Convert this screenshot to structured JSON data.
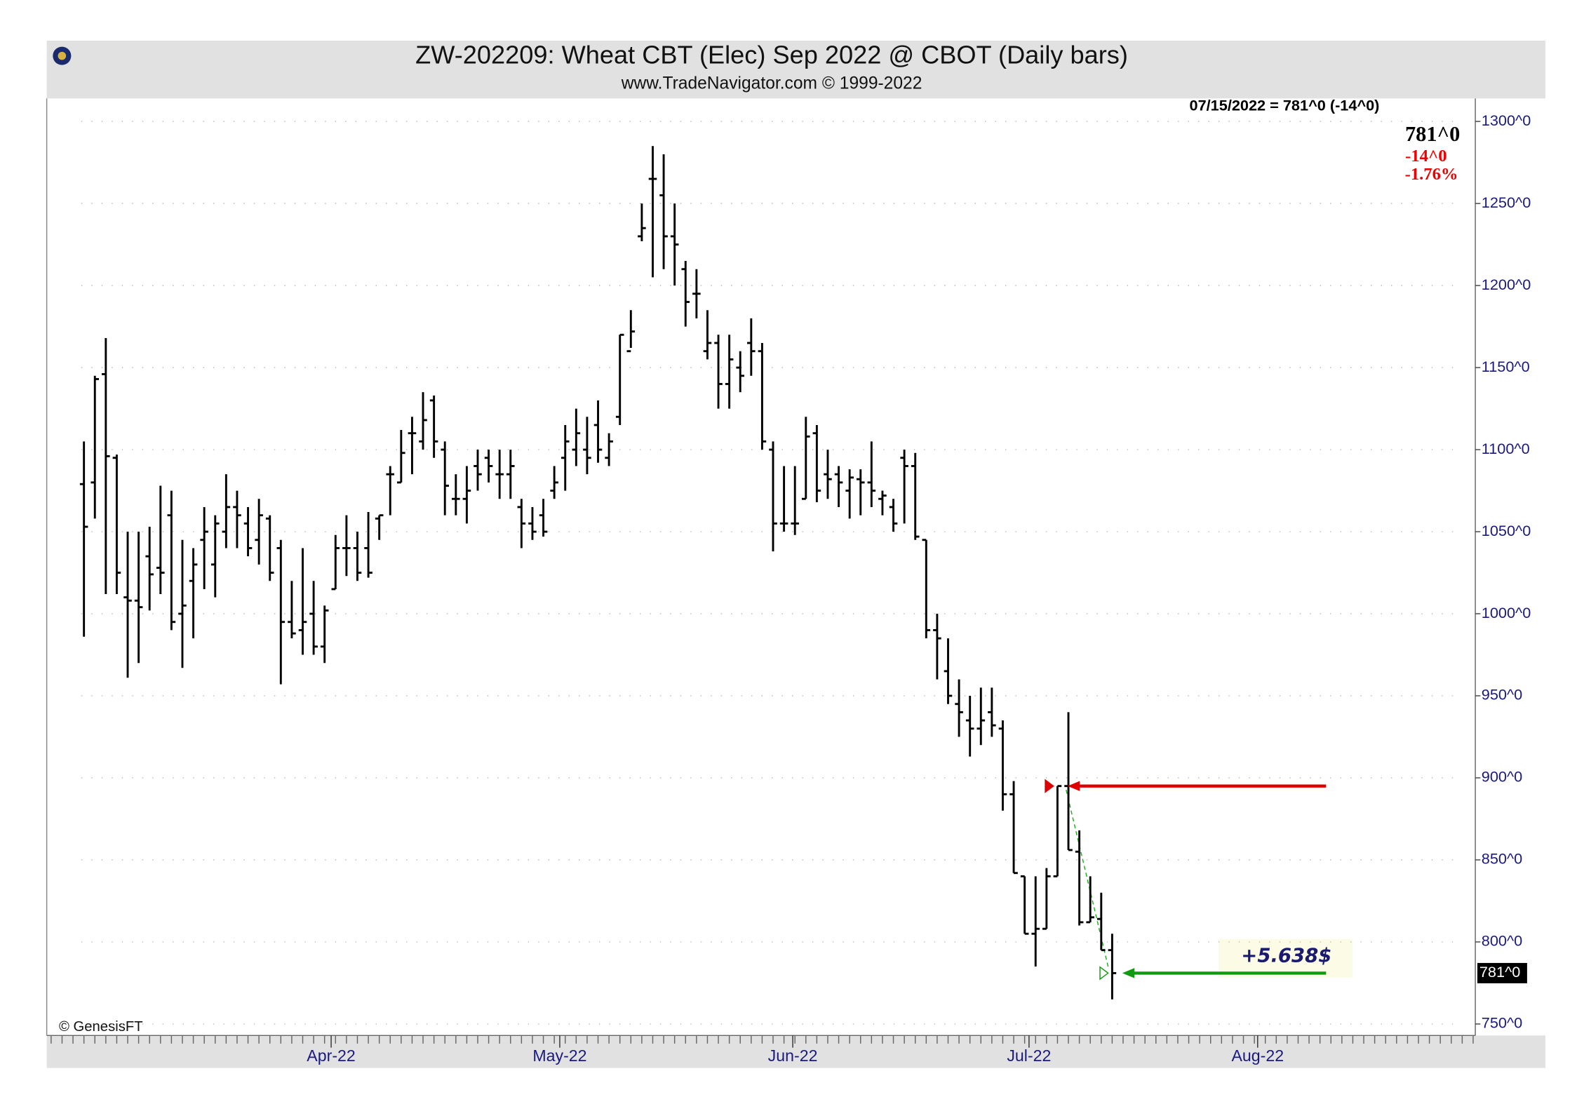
{
  "chart_data": {
    "type": "ohlc",
    "title": "ZW-202209:  Wheat CBT (Elec) Sep 2022 @ CBOT  (Daily bars)",
    "subtitle": "www.TradeNavigator.com © 1999-2022",
    "header_label": "07/15/2022 = 781^0 (-14^0)",
    "last_price": {
      "value": 781,
      "label": "781^0"
    },
    "change": {
      "value": -14,
      "label": "-14^0"
    },
    "change_pct": {
      "value": -1.76,
      "label": "-1.76%"
    },
    "price_box": {
      "value": 781,
      "label": "781^0"
    },
    "profit": {
      "value": 5.638,
      "label": "+5.638$"
    },
    "copyright": "© GenesisFT",
    "color": "#000000",
    "categories": [
      null,
      null,
      null,
      null,
      null,
      null,
      null,
      null,
      null,
      null,
      null,
      null,
      null,
      null,
      null,
      null,
      null,
      null,
      null,
      null,
      null,
      null,
      null,
      null,
      null,
      null,
      null,
      null,
      null,
      null,
      null,
      null,
      null,
      null,
      null,
      null,
      null,
      null,
      null,
      null,
      null,
      null,
      null,
      null,
      null,
      null,
      null,
      null,
      null,
      null,
      null,
      null,
      null,
      null,
      null,
      null,
      null,
      null,
      null,
      null,
      null,
      null,
      null,
      null,
      null,
      null,
      null,
      null,
      null,
      null,
      null,
      null,
      null,
      null,
      null,
      null,
      null,
      null,
      null,
      null,
      null,
      null,
      null,
      null,
      null,
      null,
      null,
      null,
      null,
      null,
      null,
      null,
      null,
      null,
      null
    ],
    "open": [
      1079,
      1080,
      1146,
      1095,
      1010,
      1008,
      1035,
      1028,
      1060,
      1000,
      1020,
      1045,
      1030,
      1050,
      1065,
      1055,
      1045,
      1058,
      1040,
      995,
      990,
      1000,
      980,
      1015,
      1040,
      1040,
      1040,
      1058,
      1085,
      1080,
      1110,
      1105,
      1130,
      1100,
      1070,
      1070,
      1090,
      1095,
      1085,
      1085,
      1065,
      1055,
      1060,
      1075,
      1095,
      1100,
      1100,
      1115,
      1095,
      1120,
      1160,
      1230,
      1265,
      1255,
      1230,
      1210,
      1195,
      1160,
      1165,
      1140,
      1150,
      1165,
      1160,
      1100,
      1055,
      1055,
      1070,
      1110,
      1085,
      1085,
      1075,
      1082,
      1080,
      1070,
      1065,
      1095,
      1090,
      1045,
      990,
      965,
      945,
      935,
      930,
      940,
      930,
      890,
      840,
      805,
      808,
      840,
      895,
      855,
      812,
      814,
      795
    ],
    "high": [
      1105,
      1145,
      1168,
      1097,
      1050,
      1050,
      1053,
      1078,
      1075,
      1045,
      1040,
      1065,
      1060,
      1085,
      1075,
      1065,
      1070,
      1060,
      1045,
      1020,
      1040,
      1020,
      1005,
      1048,
      1060,
      1050,
      1062,
      1060,
      1090,
      1112,
      1120,
      1135,
      1133,
      1105,
      1085,
      1090,
      1100,
      1100,
      1100,
      1100,
      1070,
      1065,
      1070,
      1090,
      1115,
      1125,
      1120,
      1130,
      1110,
      1170,
      1185,
      1250,
      1285,
      1280,
      1250,
      1215,
      1210,
      1185,
      1170,
      1170,
      1160,
      1180,
      1165,
      1105,
      1090,
      1090,
      1120,
      1115,
      1100,
      1090,
      1088,
      1088,
      1105,
      1075,
      1070,
      1100,
      1098,
      1045,
      1000,
      985,
      960,
      950,
      955,
      955,
      935,
      898,
      840,
      840,
      845,
      895,
      940,
      868,
      840,
      830,
      805
    ],
    "low": [
      986,
      1058,
      1012,
      1012,
      961,
      970,
      1002,
      1012,
      990,
      967,
      985,
      1015,
      1010,
      1040,
      1040,
      1035,
      1030,
      1020,
      957,
      985,
      975,
      975,
      970,
      1015,
      1023,
      1020,
      1022,
      1045,
      1060,
      1080,
      1085,
      1100,
      1095,
      1060,
      1060,
      1055,
      1075,
      1080,
      1070,
      1070,
      1040,
      1045,
      1047,
      1070,
      1075,
      1090,
      1085,
      1092,
      1090,
      1115,
      1162,
      1227,
      1205,
      1210,
      1200,
      1175,
      1180,
      1155,
      1125,
      1125,
      1135,
      1145,
      1100,
      1038,
      1050,
      1048,
      1070,
      1068,
      1070,
      1065,
      1058,
      1060,
      1065,
      1060,
      1050,
      1055,
      1045,
      985,
      960,
      945,
      925,
      913,
      920,
      925,
      880,
      842,
      805,
      785,
      808,
      840,
      856,
      810,
      812,
      795,
      765
    ],
    "close": [
      1053,
      1143,
      1096,
      1025,
      1008,
      1004,
      1024,
      1025,
      995,
      1005,
      1030,
      1050,
      1055,
      1065,
      1060,
      1040,
      1060,
      1025,
      995,
      988,
      995,
      980,
      1002,
      1040,
      1040,
      1025,
      1025,
      1060,
      1085,
      1098,
      1110,
      1118,
      1105,
      1078,
      1070,
      1075,
      1085,
      1090,
      1085,
      1090,
      1055,
      1050,
      1050,
      1080,
      1105,
      1110,
      1095,
      1100,
      1105,
      1170,
      1172,
      1235,
      1265,
      1230,
      1225,
      1190,
      1195,
      1165,
      1140,
      1155,
      1145,
      1160,
      1105,
      1055,
      1055,
      1055,
      1108,
      1075,
      1082,
      1080,
      1083,
      1080,
      1075,
      1072,
      1055,
      1090,
      1047,
      990,
      985,
      950,
      940,
      930,
      935,
      932,
      890,
      842,
      805,
      808,
      840,
      895,
      856,
      812,
      815,
      795,
      781
    ],
    "xlim": [
      -3.4,
      127.2
    ],
    "xticks": [
      {
        "value": 22.6,
        "label": "Apr-22"
      },
      {
        "value": 43.5,
        "label": "May-22"
      },
      {
        "value": 64.8,
        "label": "Jun-22"
      },
      {
        "value": 86.4,
        "label": "Jul-22"
      },
      {
        "value": 107.3,
        "label": "Aug-22"
      }
    ],
    "ylim": [
      743,
      1314
    ],
    "yticks": [
      {
        "value": 750,
        "label": "750^0"
      },
      {
        "value": 800,
        "label": "800^0"
      },
      {
        "value": 850,
        "label": "850^0"
      },
      {
        "value": 900,
        "label": "900^0"
      },
      {
        "value": 950,
        "label": "950^0"
      },
      {
        "value": 1000,
        "label": "1000^0"
      },
      {
        "value": 1050,
        "label": "1050^0"
      },
      {
        "value": 1100,
        "label": "1100^0"
      },
      {
        "value": 1150,
        "label": "1150^0"
      },
      {
        "value": 1200,
        "label": "1200^0"
      },
      {
        "value": 1250,
        "label": "1250^0"
      },
      {
        "value": 1300,
        "label": "1300^0"
      }
    ],
    "grid": true,
    "arrows": [
      {
        "color": "#dd0000",
        "value": 895,
        "index": 89
      },
      {
        "color": "#119911",
        "value": 781,
        "index": 94
      }
    ]
  }
}
